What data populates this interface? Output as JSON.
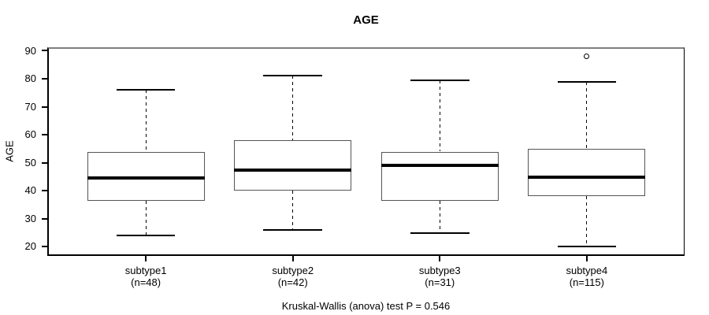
{
  "title": "AGE",
  "caption": "Kruskal-Wallis (anova) test P = 0.546",
  "y_axis_title": "AGE",
  "colors": {
    "line": "#000000",
    "box_border": "#555555",
    "frame_top": "#808080",
    "background": "#ffffff"
  },
  "chart_data": {
    "type": "boxplot",
    "title": "AGE",
    "xlabel": "",
    "ylabel": "AGE",
    "ylim": [
      17.3,
      90.7
    ],
    "yticks": [
      20,
      30,
      40,
      50,
      60,
      70,
      80,
      90
    ],
    "grid": false,
    "legend": "none",
    "annotation": "Kruskal-Wallis (anova) test P = 0.546",
    "categories": [
      "subtype1",
      "subtype2",
      "subtype3",
      "subtype4"
    ],
    "category_sublabels": [
      "(n=48)",
      "(n=42)",
      "(n=31)",
      "(n=115)"
    ],
    "series": [
      {
        "name": "subtype1",
        "n": 48,
        "whisker_low": 24,
        "q1": 36.5,
        "median": 44.5,
        "q3": 54,
        "whisker_high": 76,
        "outliers": []
      },
      {
        "name": "subtype2",
        "n": 42,
        "whisker_low": 26,
        "q1": 40,
        "median": 47.5,
        "q3": 58,
        "whisker_high": 81,
        "outliers": []
      },
      {
        "name": "subtype3",
        "n": 31,
        "whisker_low": 25,
        "q1": 36.5,
        "median": 49,
        "q3": 54,
        "whisker_high": 79.5,
        "outliers": []
      },
      {
        "name": "subtype4",
        "n": 115,
        "whisker_low": 20,
        "q1": 38,
        "median": 45,
        "q3": 55,
        "whisker_high": 79,
        "outliers": [
          88
        ]
      }
    ]
  }
}
